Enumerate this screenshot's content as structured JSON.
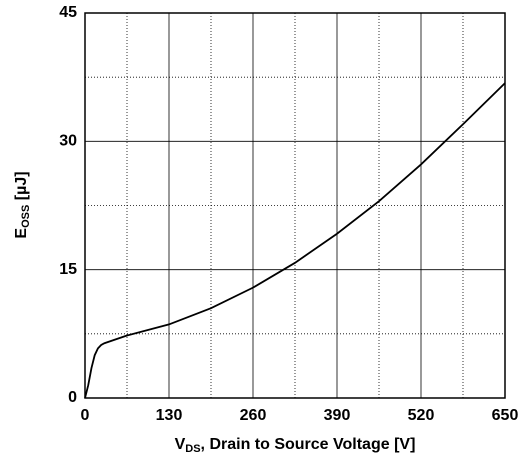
{
  "chart_data": {
    "type": "line",
    "xlabel": {
      "main": "V",
      "sub": "DS",
      "rest": ", Drain to Source Voltage [V]"
    },
    "ylabel": {
      "main": "E",
      "sub": "OSS",
      "rest": " [µJ]"
    },
    "x": [
      0,
      5,
      10,
      15,
      20,
      25,
      30,
      65,
      130,
      195,
      260,
      325,
      390,
      455,
      520,
      585,
      650
    ],
    "series": [
      {
        "color": "#000000",
        "values": [
          0,
          1.5,
          3.5,
          5.0,
          5.8,
          6.2,
          6.4,
          7.3,
          8.6,
          10.5,
          12.9,
          15.8,
          19.2,
          23.0,
          27.3,
          32.0,
          36.8
        ]
      }
    ],
    "xlim": [
      0,
      650
    ],
    "xticks": [
      0,
      130,
      260,
      390,
      520,
      650
    ],
    "xminorticks": [
      65,
      195,
      325,
      455,
      585
    ],
    "ylim": [
      0,
      45
    ],
    "yticks": [
      0,
      15,
      30,
      45
    ],
    "yminorticks": [
      7.5,
      22.5,
      37.5
    ],
    "grid": true
  }
}
